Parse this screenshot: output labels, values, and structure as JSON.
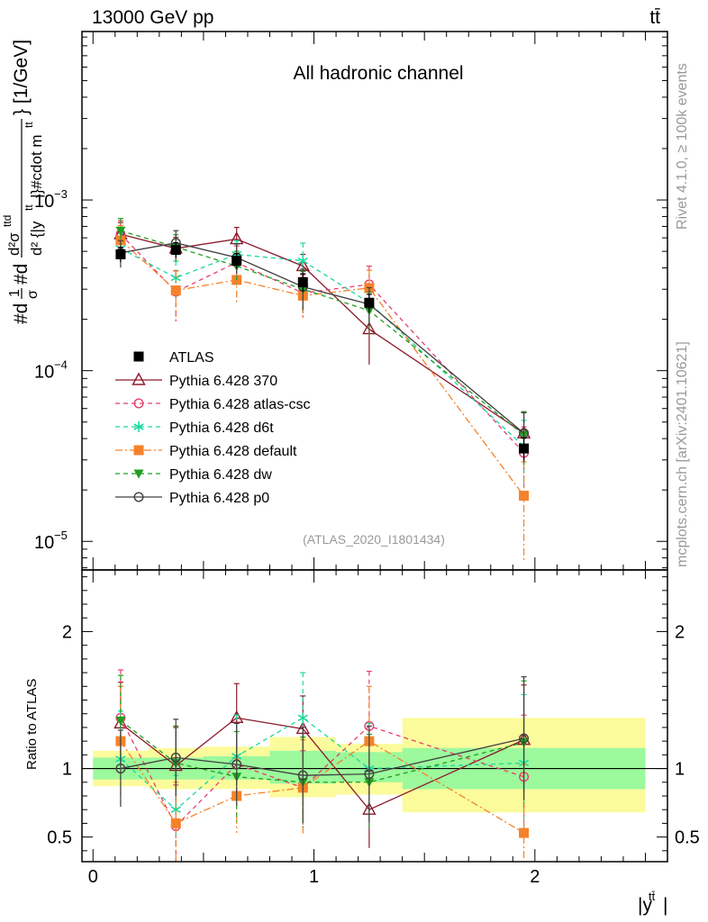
{
  "header": {
    "left": "13000 GeV pp",
    "right": "tt̄"
  },
  "side_text": {
    "rivet": "Rivet 4.1.0, ≥ 100k events",
    "mcplots": "mcplots.cern.ch [arXiv:2401.10621]"
  },
  "colors": {
    "atlas": "#000000",
    "p370": "#8b1a2c",
    "atlascsc": "#e83e6c",
    "d6t": "#1cd8a0",
    "default": "#f5822a",
    "dw": "#1e9e1e",
    "p0": "#404040",
    "band_inner": "#9cf99c",
    "band_outer": "#fbfb9c",
    "watermark": "#999999"
  },
  "chart_data": {
    "type": "scatter",
    "title": "All hadronic channel",
    "analysis_id": "(ATLAS_2020_I1801434)",
    "ylabel": "#d¹⁄σ#d d²σttd / d²{|yt̅t|}#cdot mtt̅} [1/GeV]",
    "ylabel_parts": {
      "prefix": "#d",
      "frac_num": "1",
      "frac_den": "σ",
      "mid": "#d",
      "d2sigma": "d²σ",
      "sup": "ttd",
      "den": "d² {|y",
      "den_sup": "tt",
      "den_mid": "|}#cdot m",
      "den_sup2": "tt",
      "unit": "} [1/GeV]"
    },
    "xlabel": "|y",
    "xlabel_sup": "tt̄",
    "xlabel_close": "|",
    "ratio_ylabel": "Ratio to ATLAS",
    "main_yaxis": {
      "scale": "log",
      "range": [
        6.8e-06,
        0.0097
      ],
      "tick_labels": [
        {
          "value": 1e-05,
          "base": "10",
          "exp": "−5"
        },
        {
          "value": 0.0001,
          "base": "10",
          "exp": "−4"
        },
        {
          "value": 0.001,
          "base": "10",
          "exp": "−3"
        }
      ]
    },
    "ratio_yaxis": {
      "range": [
        0.32,
        2.45
      ],
      "tick_labels": [
        "0.5",
        "1",
        "2"
      ],
      "tick_values": [
        0.5,
        1,
        2
      ]
    },
    "xaxis": {
      "range": [
        -0.05,
        2.6
      ],
      "tick_labels": [
        "0",
        "1",
        "2"
      ],
      "tick_values": [
        0,
        1,
        2
      ]
    },
    "bins": [
      {
        "lo": 0.0,
        "hi": 0.25,
        "inner": [
          0.92,
          1.08
        ],
        "outer": [
          0.87,
          1.13
        ]
      },
      {
        "lo": 0.25,
        "hi": 0.5,
        "inner": [
          0.92,
          1.08
        ],
        "outer": [
          0.85,
          1.15
        ]
      },
      {
        "lo": 0.5,
        "hi": 0.8,
        "inner": [
          0.92,
          1.09
        ],
        "outer": [
          0.85,
          1.16
        ]
      },
      {
        "lo": 0.8,
        "hi": 1.1,
        "inner": [
          0.89,
          1.13
        ],
        "outer": [
          0.79,
          1.23
        ]
      },
      {
        "lo": 1.1,
        "hi": 1.4,
        "inner": [
          0.9,
          1.12
        ],
        "outer": [
          0.81,
          1.18
        ]
      },
      {
        "lo": 1.4,
        "hi": 2.5,
        "inner": [
          0.85,
          1.15
        ],
        "outer": [
          0.68,
          1.37
        ]
      }
    ],
    "x": [
      0.125,
      0.375,
      0.65,
      0.95,
      1.25,
      1.95
    ],
    "series": [
      {
        "name": "ATLAS",
        "key": "atlas",
        "marker": "square",
        "dash": "",
        "values": [
          0.00048,
          0.00051,
          0.00044,
          0.00033,
          0.00025,
          3.5e-05
        ],
        "err": [
          0.1,
          0.1,
          0.1,
          0.12,
          0.12,
          0.15
        ],
        "ratio": [
          1,
          1,
          1,
          1,
          1,
          1
        ],
        "ratio_err": [
          0,
          0,
          0,
          0,
          0,
          0
        ]
      },
      {
        "name": "Pythia 6.428 370",
        "key": "p370",
        "marker": "triangle-open",
        "dash": "",
        "values": [
          0.00063,
          0.00052,
          0.00059,
          0.00041,
          0.000175,
          4.3e-05
        ],
        "err": [
          0.17,
          0.16,
          0.17,
          0.17,
          0.38,
          0.32
        ],
        "ratio": [
          1.33,
          1.02,
          1.37,
          1.29,
          0.7,
          1.21
        ],
        "ratio_err": [
          0.3,
          0.28,
          0.25,
          0.24,
          0.28,
          0.4
        ]
      },
      {
        "name": "Pythia 6.428 atlas-csc",
        "key": "atlascsc",
        "marker": "circle-open",
        "dash": "5,4",
        "values": [
          0.00063,
          0.00029,
          0.00043,
          0.000285,
          0.00032,
          3.3e-05
        ],
        "err": [
          0.2,
          0.33,
          0.25,
          0.28,
          0.28,
          0.42
        ],
        "ratio": [
          1.37,
          0.58,
          1.03,
          0.86,
          1.31,
          0.94
        ],
        "ratio_err": [
          0.35,
          0.3,
          0.3,
          0.27,
          0.4,
          0.45
        ]
      },
      {
        "name": "Pythia 6.428 d6t",
        "key": "d6t",
        "marker": "star",
        "dash": "5,4",
        "values": [
          0.00052,
          0.00035,
          0.00048,
          0.00044,
          0.00025,
          3.6e-05
        ],
        "err": [
          0.22,
          0.25,
          0.2,
          0.27,
          0.25,
          0.42
        ],
        "ratio": [
          1.07,
          0.7,
          1.09,
          1.37,
          1.0,
          1.04
        ],
        "ratio_err": [
          0.35,
          0.25,
          0.3,
          0.33,
          0.33,
          0.5
        ]
      },
      {
        "name": "Pythia 6.428 default",
        "key": "default",
        "marker": "square",
        "dash": "8,3,2,3",
        "values": [
          0.00058,
          0.000295,
          0.00034,
          0.000275,
          0.000305,
          1.85e-05
        ],
        "err": [
          0.22,
          0.3,
          0.28,
          0.28,
          0.27,
          0.58
        ],
        "ratio": [
          1.2,
          0.6,
          0.8,
          0.86,
          1.2,
          0.53
        ],
        "ratio_err": [
          0.4,
          0.3,
          0.27,
          0.35,
          0.4,
          0.5
        ]
      },
      {
        "name": "Pythia 6.428 dw",
        "key": "dw",
        "marker": "triangle-down",
        "dash": "5,4",
        "values": [
          0.00066,
          0.00053,
          0.00041,
          0.0003,
          0.000225,
          4.2e-05
        ],
        "err": [
          0.18,
          0.18,
          0.22,
          0.27,
          0.28,
          0.37
        ],
        "ratio": [
          1.35,
          1.04,
          0.94,
          0.9,
          0.9,
          1.19
        ],
        "ratio_err": [
          0.33,
          0.27,
          0.33,
          0.33,
          0.35,
          0.45
        ]
      },
      {
        "name": "Pythia 6.428 p0",
        "key": "p0",
        "marker": "circle-open",
        "dash": "",
        "values": [
          0.00049,
          0.00056,
          0.00046,
          0.00031,
          0.000245,
          4.3e-05
        ],
        "err": [
          0.18,
          0.18,
          0.2,
          0.27,
          0.25,
          0.32
        ],
        "ratio": [
          1.0,
          1.08,
          1.03,
          0.95,
          0.96,
          1.22
        ],
        "ratio_err": [
          0.28,
          0.28,
          0.3,
          0.35,
          0.35,
          0.45
        ]
      }
    ]
  }
}
